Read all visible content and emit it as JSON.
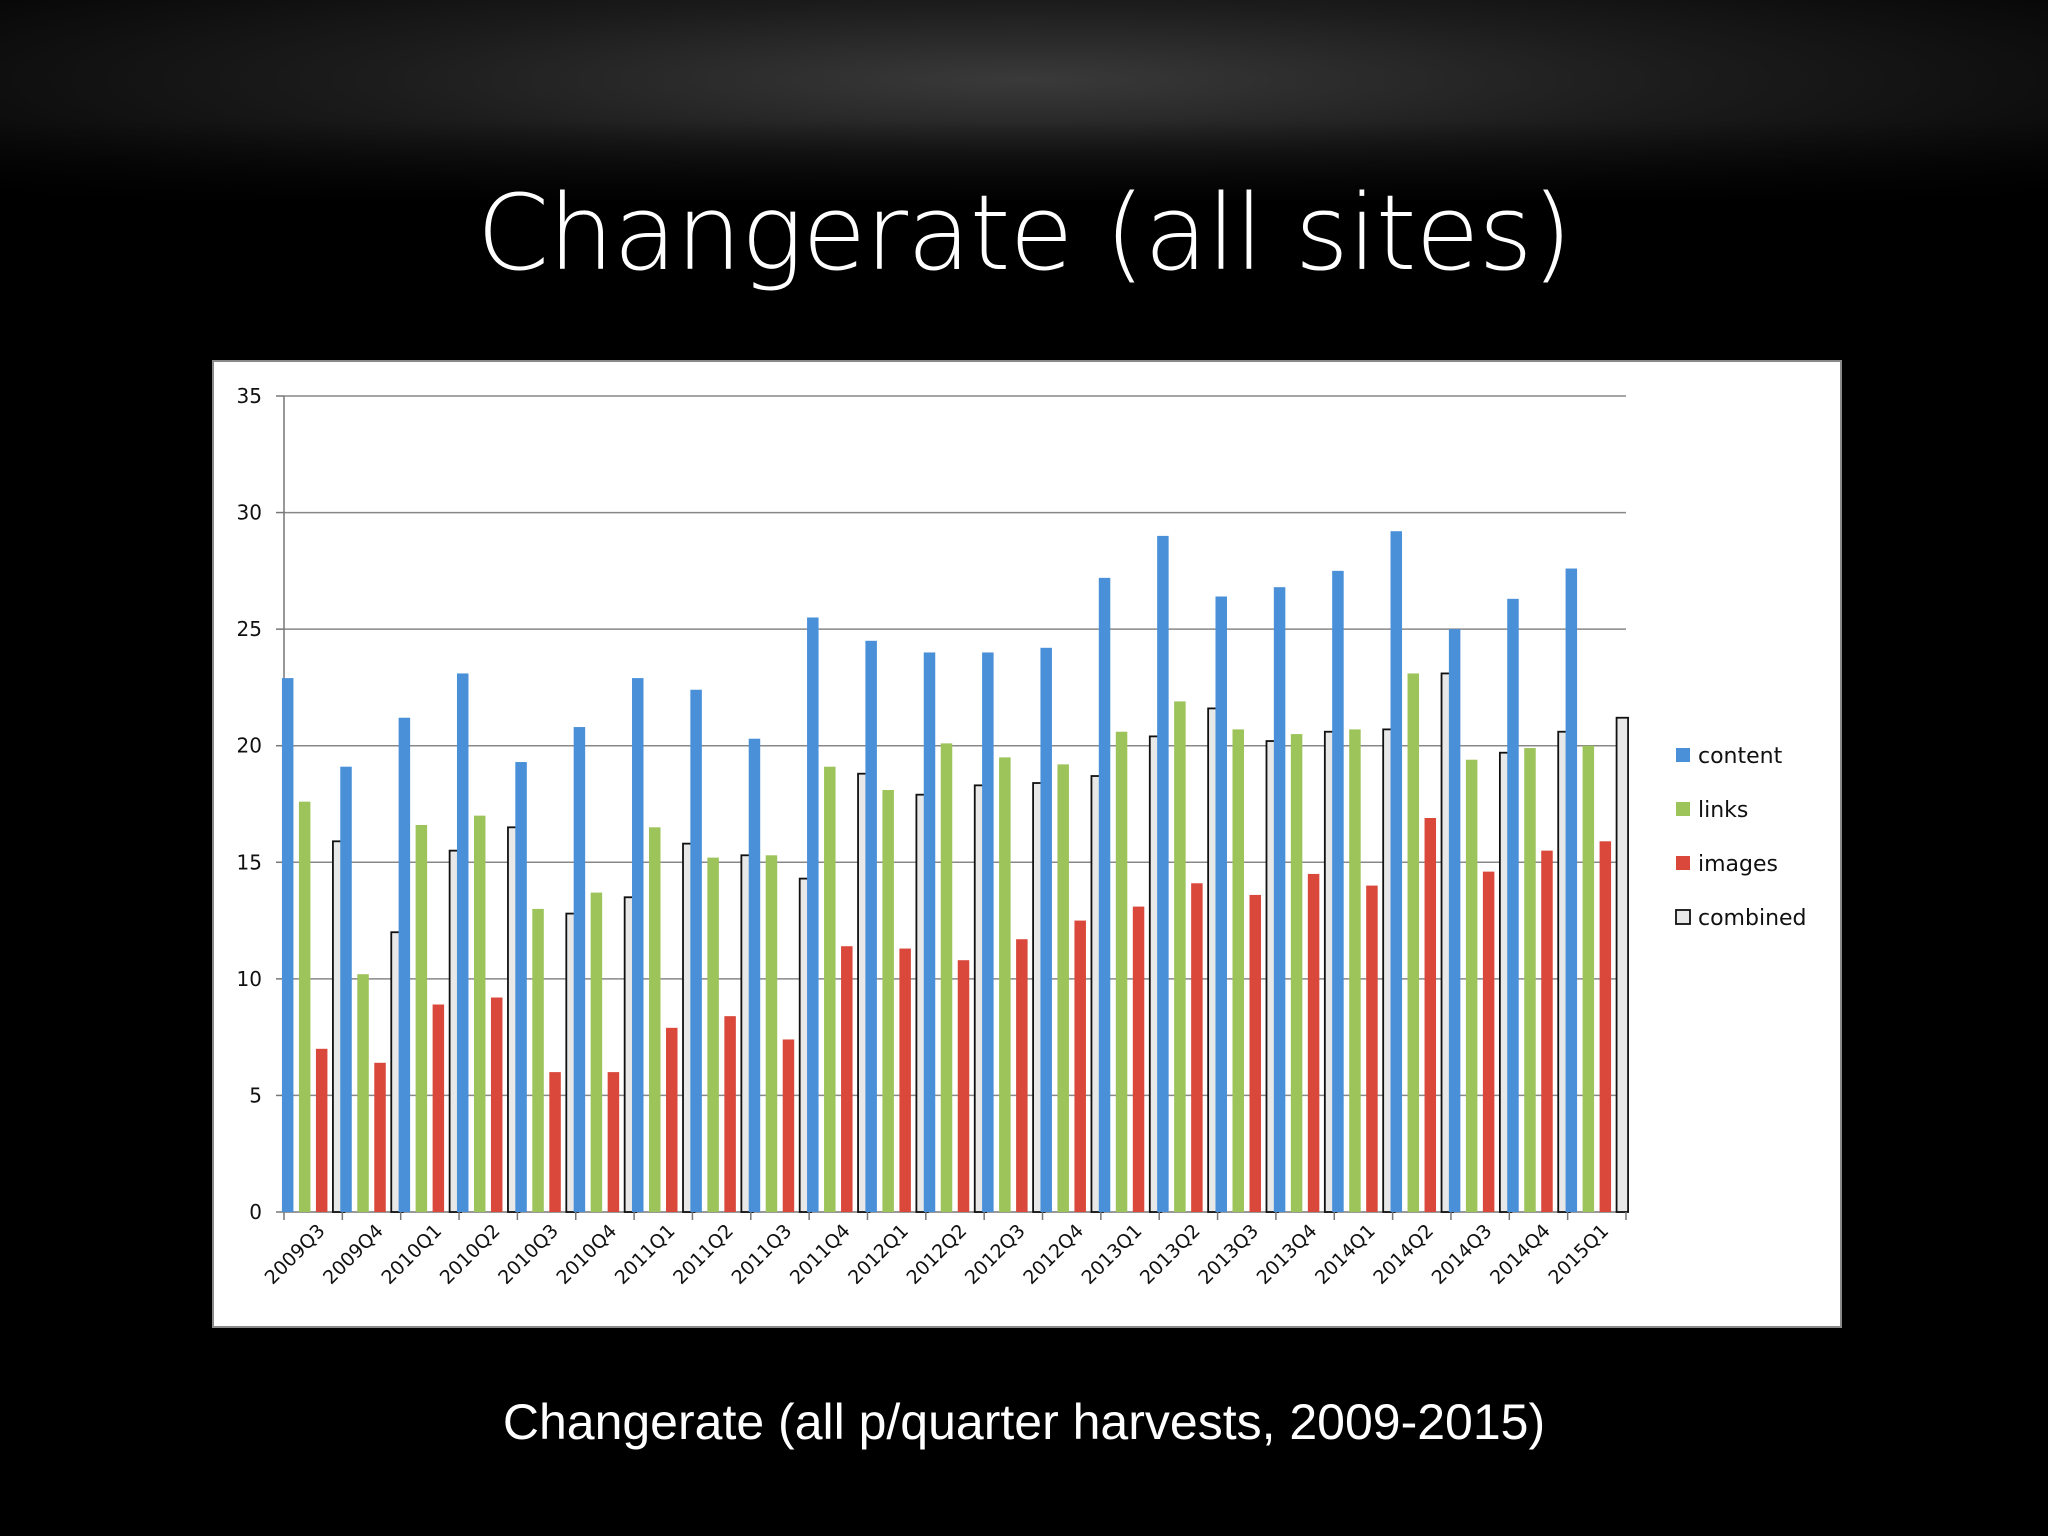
{
  "slide": {
    "title": "Changerate (all sites)",
    "caption": "Changerate (all p/quarter harvests, 2009-2015)"
  },
  "chart_data": {
    "type": "bar",
    "title": "",
    "xlabel": "",
    "ylabel": "",
    "ylim": [
      0,
      35
    ],
    "yticks": [
      0,
      5,
      10,
      15,
      20,
      25,
      30,
      35
    ],
    "grid": true,
    "legend_position": "right",
    "categories": [
      "2009Q3",
      "2009Q4",
      "2010Q1",
      "2010Q2",
      "2010Q3",
      "2010Q4",
      "2011Q1",
      "2011Q2",
      "2011Q3",
      "2011Q4",
      "2012Q1",
      "2012Q2",
      "2012Q3",
      "2012Q4",
      "2013Q1",
      "2013Q2",
      "2013Q3",
      "2013Q4",
      "2014Q1",
      "2014Q2",
      "2014Q3",
      "2014Q4",
      "2015Q1"
    ],
    "series": [
      {
        "name": "content",
        "color": "#4a90d9",
        "values": [
          22.9,
          19.1,
          21.2,
          23.1,
          19.3,
          20.8,
          22.9,
          22.4,
          20.3,
          25.5,
          24.5,
          24.0,
          24.0,
          24.2,
          27.2,
          29.0,
          26.4,
          26.8,
          27.5,
          29.2,
          25.0,
          26.3,
          27.6
        ]
      },
      {
        "name": "links",
        "color": "#9dc45a",
        "values": [
          17.6,
          10.2,
          16.6,
          17.0,
          13.0,
          13.7,
          16.5,
          15.2,
          15.3,
          19.1,
          18.1,
          20.1,
          19.5,
          19.2,
          20.6,
          21.9,
          20.7,
          20.5,
          20.7,
          23.1,
          19.4,
          19.9,
          20.0
        ]
      },
      {
        "name": "images",
        "color": "#d9483b",
        "values": [
          7.0,
          6.4,
          8.9,
          9.2,
          6.0,
          6.0,
          7.9,
          8.4,
          7.4,
          11.4,
          11.3,
          10.8,
          11.7,
          12.5,
          13.1,
          14.1,
          13.6,
          14.5,
          14.0,
          16.9,
          14.6,
          15.5,
          15.9
        ]
      },
      {
        "name": "combined",
        "color": "#e8e8e8",
        "values": [
          15.9,
          12.0,
          15.5,
          16.5,
          12.8,
          13.5,
          15.8,
          15.3,
          14.3,
          18.8,
          17.9,
          18.3,
          18.4,
          18.7,
          20.4,
          21.6,
          20.2,
          20.6,
          20.7,
          23.1,
          19.7,
          20.6,
          21.2
        ]
      }
    ]
  }
}
